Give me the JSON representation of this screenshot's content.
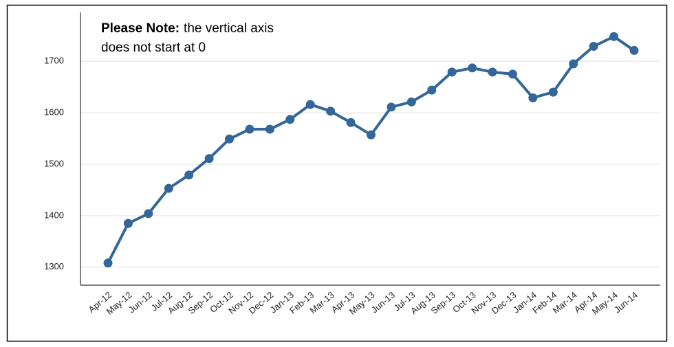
{
  "chart_data": {
    "type": "line",
    "annotation": {
      "label": "Please Note:",
      "lines": [
        "the vertical axis",
        "does not start at 0"
      ]
    },
    "categories": [
      "Apr-12",
      "May-12",
      "Jun-12",
      "Jul-12",
      "Aug-12",
      "Sep-12",
      "Oct-12",
      "Nov-12",
      "Dec-12",
      "Jan-13",
      "Feb-13",
      "Mar-13",
      "Apr-13",
      "May-13",
      "Jun-13",
      "Jul-13",
      "Aug-13",
      "Sep-13",
      "Oct-13",
      "Nov-13",
      "Dec-13",
      "Jan-14",
      "Feb-14",
      "Mar-14",
      "Apr-14",
      "May-14",
      "Jun-14"
    ],
    "series": [
      {
        "color": "#336699",
        "values": [
          1308,
          1385,
          1404,
          1453,
          1479,
          1511,
          1549,
          1568,
          1568,
          1587,
          1616,
          1603,
          1581,
          1557,
          1611,
          1621,
          1644,
          1679,
          1687,
          1679,
          1675,
          1629,
          1640,
          1695,
          1729,
          1748,
          1721
        ]
      }
    ],
    "ylim": [
      1265,
      1795
    ],
    "yticks": [
      1300,
      1400,
      1500,
      1600,
      1700
    ],
    "grid": true
  }
}
